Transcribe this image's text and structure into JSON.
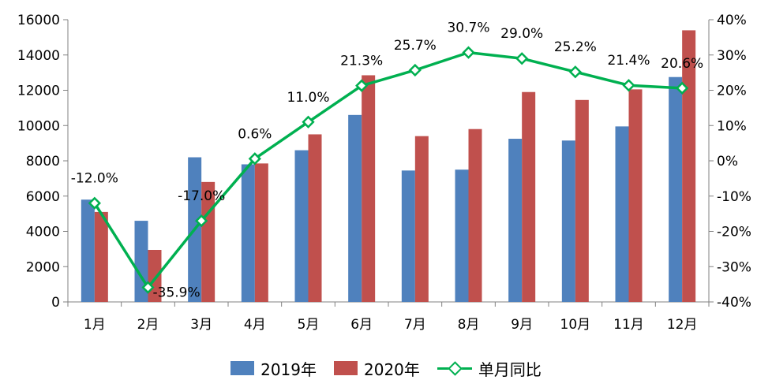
{
  "chart_data": {
    "type": "bar",
    "categories": [
      "1月",
      "2月",
      "3月",
      "4月",
      "5月",
      "6月",
      "7月",
      "8月",
      "9月",
      "10月",
      "11月",
      "12月"
    ],
    "series": [
      {
        "name": "2019年",
        "type": "bar",
        "axis": "left",
        "color": "#4f81bd",
        "values": [
          5800,
          4600,
          8200,
          7800,
          8600,
          10600,
          7450,
          7500,
          9250,
          9150,
          9950,
          12750
        ]
      },
      {
        "name": "2020年",
        "type": "bar",
        "axis": "left",
        "color": "#c0504d",
        "values": [
          5100,
          2950,
          6800,
          7850,
          9500,
          12850,
          9400,
          9800,
          11900,
          11450,
          12050,
          15400
        ]
      },
      {
        "name": "单月同比",
        "type": "line",
        "axis": "right",
        "color": "#00b050",
        "marker": "diamond",
        "values": [
          -12.0,
          -35.9,
          -17.0,
          0.6,
          11.0,
          21.3,
          25.7,
          30.7,
          29.0,
          25.2,
          21.4,
          20.6
        ],
        "labels": [
          "-12.0%",
          "-35.9%",
          "-17.0%",
          "0.6%",
          "11.0%",
          "21.3%",
          "25.7%",
          "30.7%",
          "29.0%",
          "25.2%",
          "21.4%",
          "20.6%"
        ]
      }
    ],
    "y_left": {
      "range": [
        0,
        16000
      ],
      "ticks": [
        "0",
        "2000",
        "4000",
        "6000",
        "8000",
        "10000",
        "12000",
        "14000",
        "16000"
      ]
    },
    "y_right": {
      "range": [
        -40,
        40
      ],
      "ticks": [
        "-40%",
        "-30%",
        "-20%",
        "-10%",
        "0%",
        "10%",
        "20%",
        "30%",
        "40%"
      ]
    },
    "grid": false,
    "legend_position": "bottom"
  },
  "legend": {
    "items": [
      {
        "label": "2019年",
        "color": "#4f81bd",
        "kind": "bar"
      },
      {
        "label": "2020年",
        "color": "#c0504d",
        "kind": "bar"
      },
      {
        "label": "单月同比",
        "color": "#00b050",
        "kind": "line"
      }
    ]
  }
}
